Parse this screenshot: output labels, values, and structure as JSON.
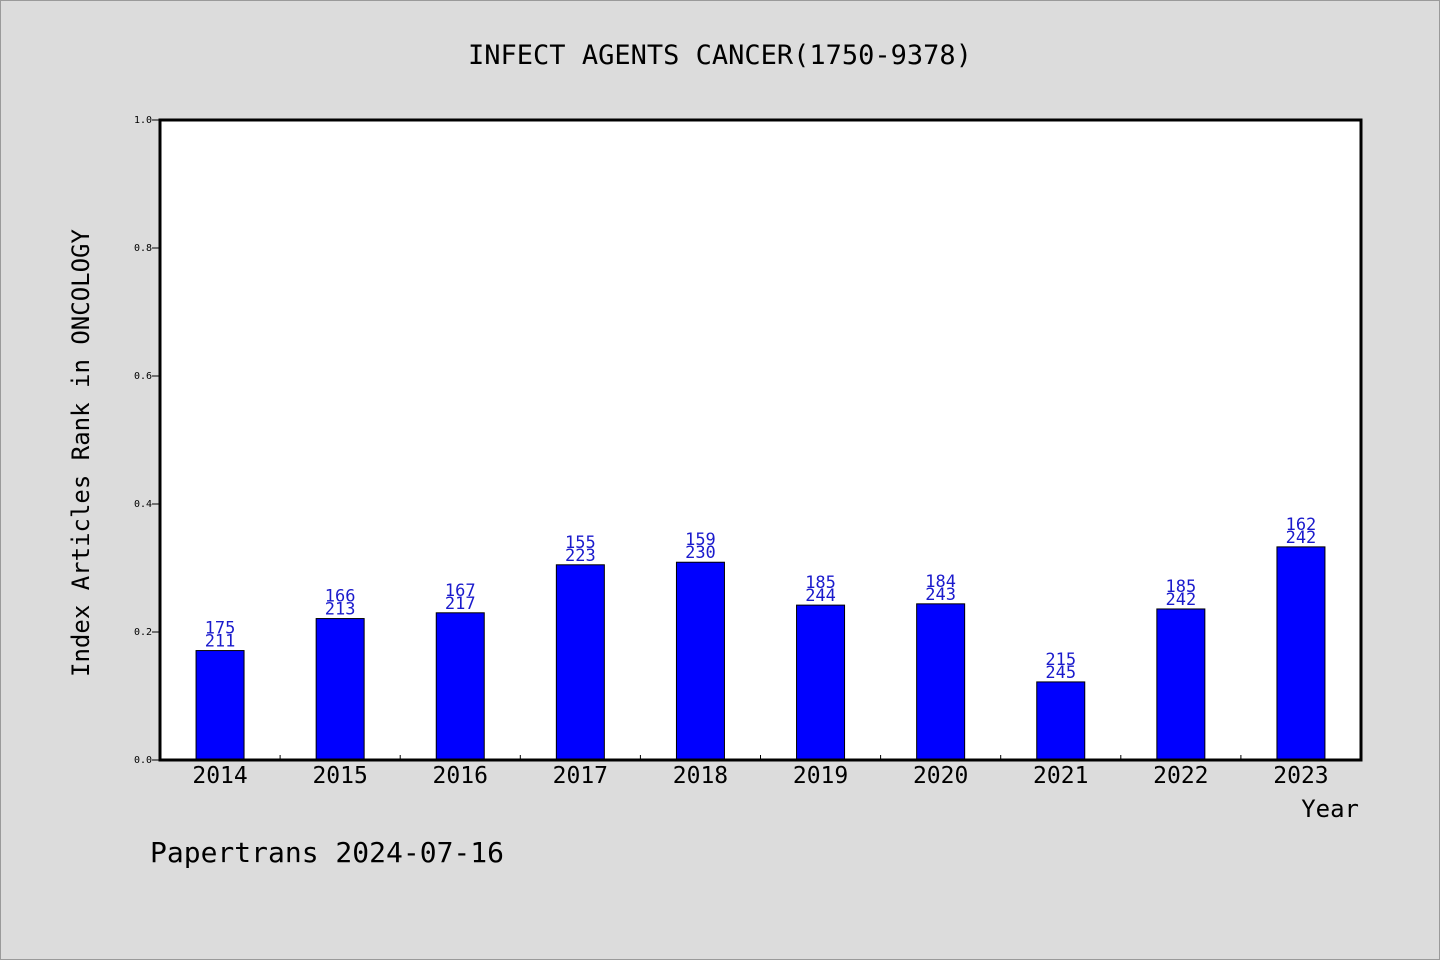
{
  "chart_data": {
    "type": "bar",
    "title": "INFECT AGENTS CANCER(1750-9378)",
    "xlabel": "Year",
    "ylabel": "Index Articles Rank in ONCOLOGY",
    "ylim": [
      0,
      1.0
    ],
    "yticks": [
      "0.0",
      "0.2",
      "0.4",
      "0.6",
      "0.8",
      "1.0"
    ],
    "categories": [
      "2014",
      "2015",
      "2016",
      "2017",
      "2018",
      "2019",
      "2020",
      "2021",
      "2022",
      "2023"
    ],
    "values": [
      0.171,
      0.221,
      0.23,
      0.305,
      0.309,
      0.242,
      0.244,
      0.122,
      0.236,
      0.333
    ],
    "labels_top": [
      "175",
      "166",
      "167",
      "155",
      "159",
      "185",
      "184",
      "215",
      "185",
      "162"
    ],
    "labels_bottom": [
      "211",
      "213",
      "217",
      "223",
      "230",
      "244",
      "243",
      "245",
      "242",
      "242"
    ],
    "bar_color": "#0000ff",
    "label_color": "#1a1acc",
    "grid": false,
    "legend": "none"
  },
  "footer": "Papertrans 2024-07-16"
}
